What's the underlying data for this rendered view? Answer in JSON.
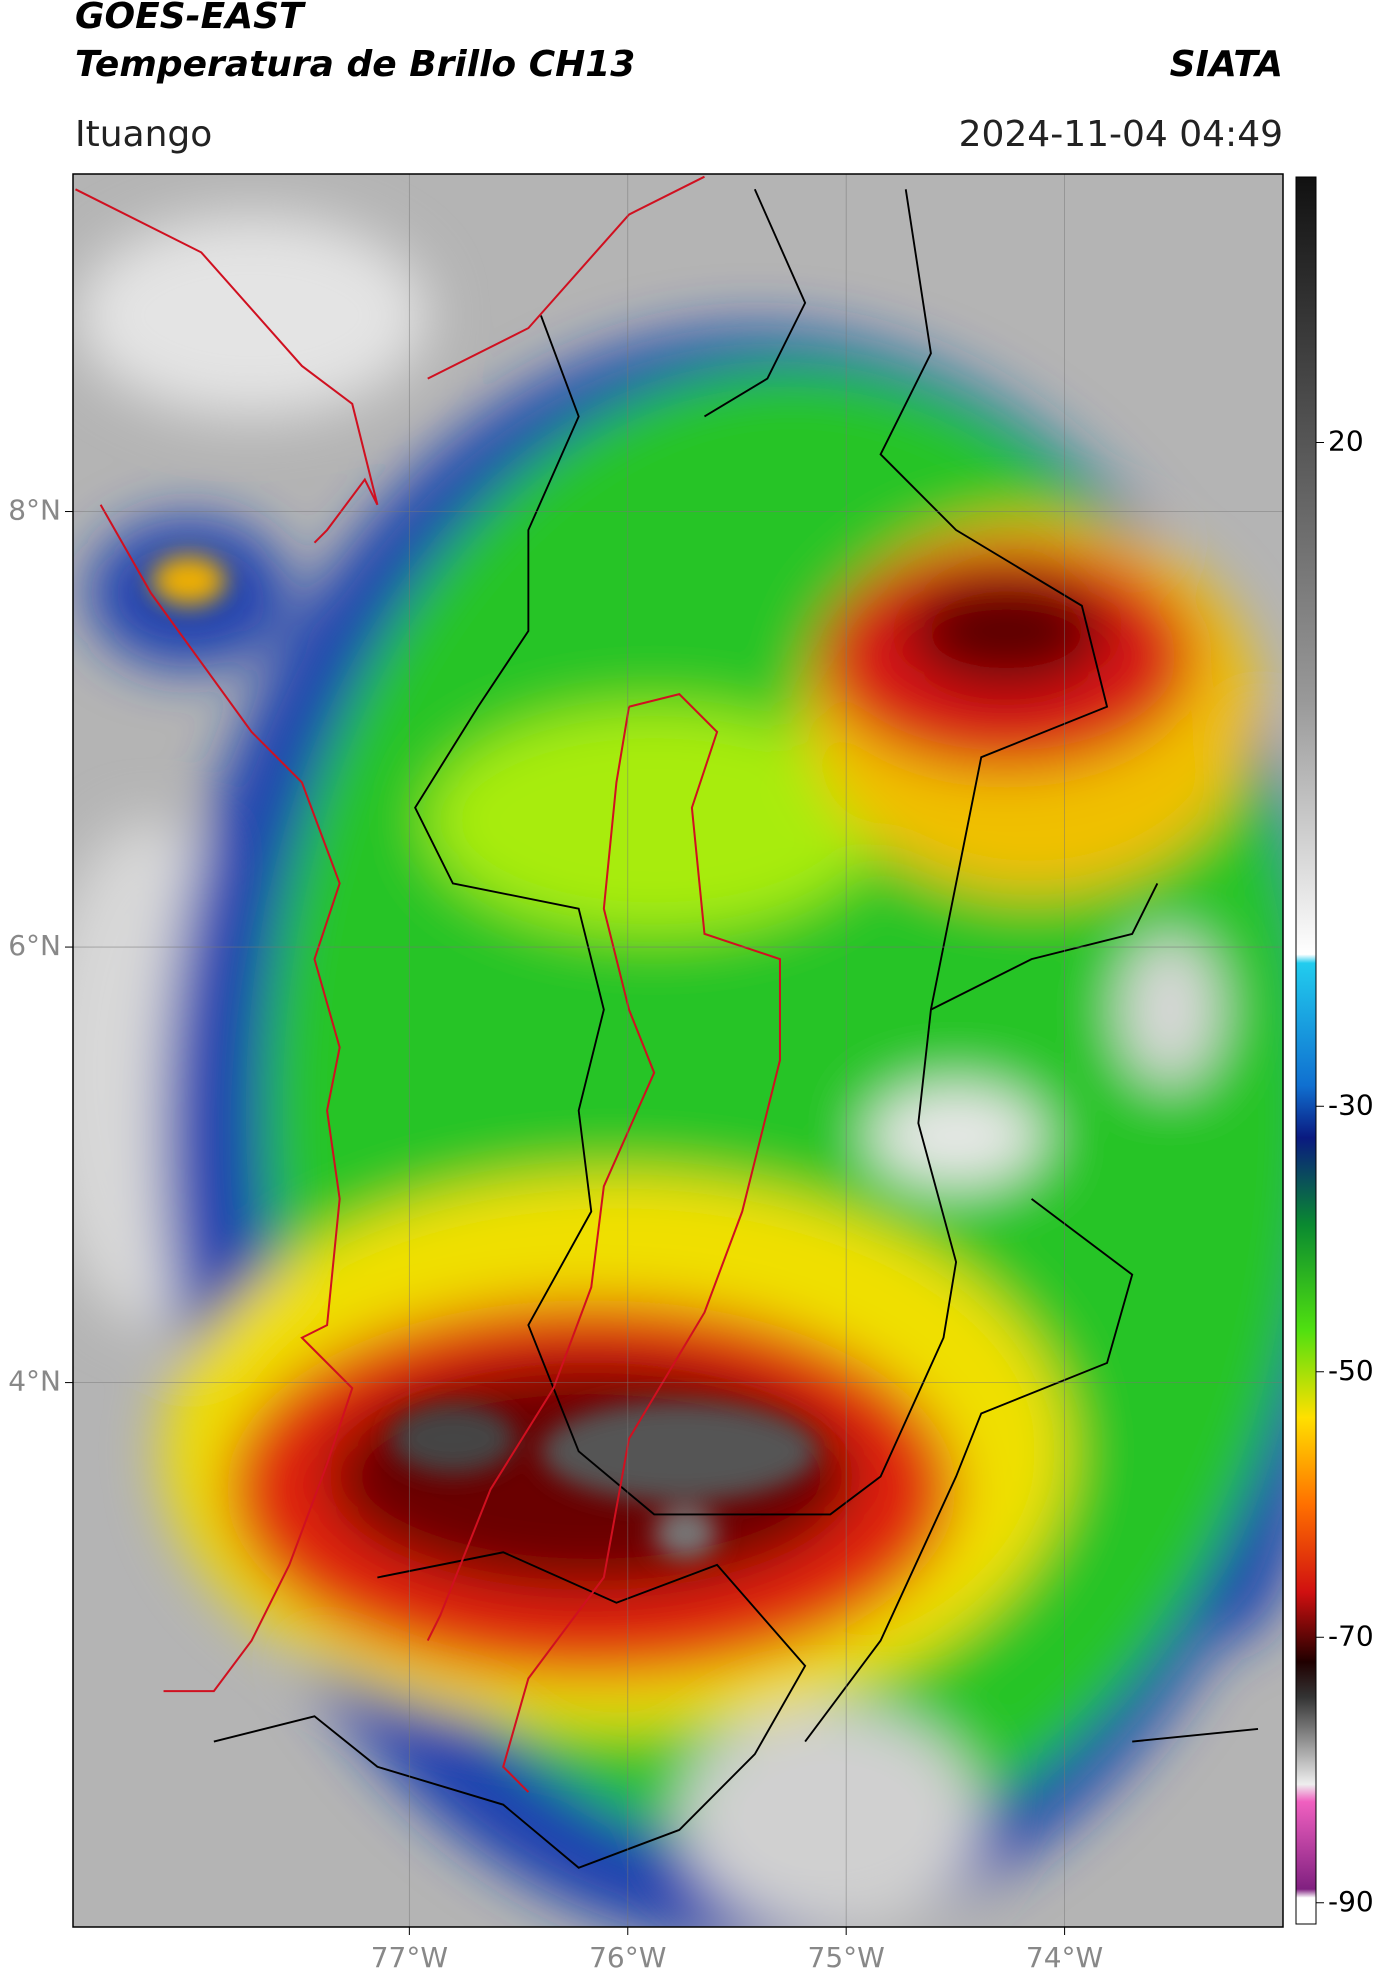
{
  "header": {
    "title": "GOES-EAST",
    "subtitle": "Temperatura de Brillo CH13",
    "source": "SIATA",
    "location": "Ituango",
    "datetime": "2024-11-04 04:49"
  },
  "map": {
    "xlim": [
      -78.54,
      -73.0
    ],
    "ylim": [
      1.5,
      9.55
    ],
    "lat_ticks": [
      {
        "value": 8,
        "label": "8°N"
      },
      {
        "value": 6,
        "label": "6°N"
      },
      {
        "value": 4,
        "label": "4°N"
      }
    ],
    "lon_ticks": [
      {
        "value": -77,
        "label": "77°W"
      },
      {
        "value": -76,
        "label": "76°W"
      },
      {
        "value": -75,
        "label": "75°W"
      },
      {
        "value": -74,
        "label": "74°W"
      }
    ]
  },
  "colorbar": {
    "lim": [
      -91.6,
      40
    ],
    "ticks": [
      20,
      -30,
      -50,
      -70,
      -90
    ]
  }
}
